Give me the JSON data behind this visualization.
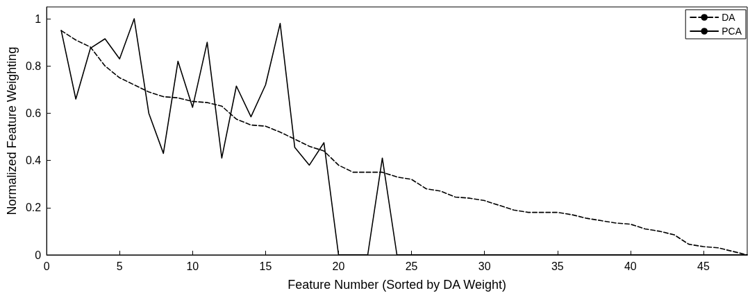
{
  "chart_data": {
    "type": "line",
    "xlabel": "Feature Number (Sorted by DA Weight)",
    "ylabel": "Normalized Feature Weighting",
    "x": [
      1,
      2,
      3,
      4,
      5,
      6,
      7,
      8,
      9,
      10,
      11,
      12,
      13,
      14,
      15,
      16,
      17,
      18,
      19,
      20,
      21,
      22,
      23,
      24,
      25,
      26,
      27,
      28,
      29,
      30,
      31,
      32,
      33,
      34,
      35,
      36,
      37,
      38,
      39,
      40,
      41,
      42,
      43,
      44,
      45,
      46,
      47,
      48
    ],
    "series": [
      {
        "name": "DA",
        "color": "#000000",
        "line_style": "dashed",
        "values": [
          0.95,
          0.91,
          0.88,
          0.8,
          0.75,
          0.72,
          0.69,
          0.67,
          0.665,
          0.65,
          0.645,
          0.63,
          0.575,
          0.55,
          0.545,
          0.52,
          0.49,
          0.46,
          0.44,
          0.38,
          0.35,
          0.35,
          0.35,
          0.33,
          0.32,
          0.28,
          0.27,
          0.245,
          0.24,
          0.23,
          0.21,
          0.19,
          0.18,
          0.18,
          0.18,
          0.17,
          0.155,
          0.145,
          0.135,
          0.13,
          0.11,
          0.1,
          0.085,
          0.045,
          0.035,
          0.03,
          0.015,
          0
        ]
      },
      {
        "name": "PCA",
        "color": "#000000",
        "line_style": "solid",
        "values": [
          0.95,
          0.66,
          0.875,
          0.915,
          0.83,
          1.0,
          0.6,
          0.43,
          0.82,
          0.625,
          0.9,
          0.41,
          0.715,
          0.585,
          0.72,
          0.98,
          0.455,
          0.38,
          0.475,
          0,
          0,
          0,
          0.41,
          0,
          0,
          0,
          0,
          0,
          0,
          0,
          0,
          0,
          0,
          0,
          0,
          0,
          0,
          0,
          0,
          0,
          0,
          0,
          0,
          0,
          0,
          0,
          0,
          0
        ]
      }
    ],
    "xlim": [
      0,
      48
    ],
    "xticks": [
      0,
      5,
      10,
      15,
      20,
      25,
      30,
      35,
      40,
      45
    ],
    "ylim": [
      0,
      1.05
    ],
    "yticks": [
      0,
      0.2,
      0.4,
      0.6,
      0.8,
      1
    ],
    "grid": false,
    "legend": "top right",
    "marker": "none"
  }
}
